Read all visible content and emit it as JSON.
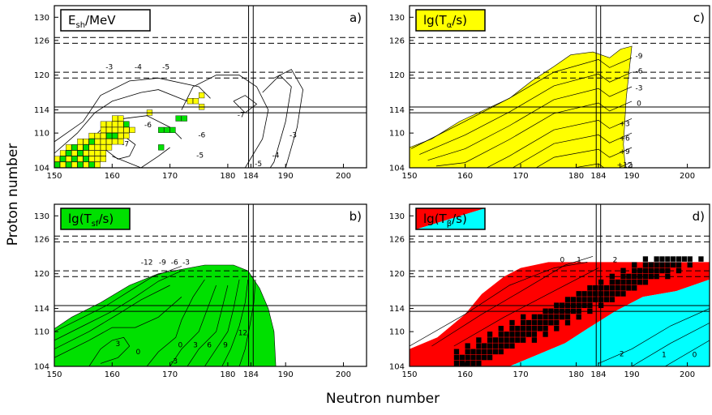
{
  "figure": {
    "xlabel": "Neutron number",
    "ylabel": "Proton number",
    "colors": {
      "yellow": "#ffff00",
      "green": "#00e000",
      "red": "#ff0000",
      "cyan": "#00ffff",
      "black": "#000000"
    }
  },
  "chart_data": [
    {
      "id": "a",
      "type": "contour",
      "panel_label": "a)",
      "title_box": {
        "main": "E",
        "sub": "sh",
        "tail": "/MeV",
        "color": "#ffffff"
      },
      "xlim": [
        150,
        204
      ],
      "ylim": [
        104,
        132
      ],
      "xticks": [
        150,
        160,
        170,
        180,
        184,
        190,
        200
      ],
      "yticks": [
        104,
        110,
        114,
        120,
        126,
        130
      ],
      "contour_labels": [
        {
          "text": "-3",
          "x": 159.5,
          "y": 121.4
        },
        {
          "text": "-4",
          "x": 164.5,
          "y": 121.4
        },
        {
          "text": "-5",
          "x": 169.3,
          "y": 121.4
        },
        {
          "text": "-6",
          "x": 166.2,
          "y": 111.4
        },
        {
          "text": "-7",
          "x": 162.3,
          "y": 108.1
        },
        {
          "text": "-6",
          "x": 175.5,
          "y": 109.7
        },
        {
          "text": "-5",
          "x": 175.2,
          "y": 106.2
        },
        {
          "text": "-4",
          "x": 173.0,
          "y": 102.8
        },
        {
          "text": "-7",
          "x": 182.3,
          "y": 113.2
        },
        {
          "text": "-3",
          "x": 191.3,
          "y": 109.7
        },
        {
          "text": "-4",
          "x": 188.3,
          "y": 106.2
        },
        {
          "text": "-5",
          "x": 185.3,
          "y": 104.7
        }
      ],
      "yellow_nuclei": [
        [
          150,
          104
        ],
        [
          151,
          104
        ],
        [
          152,
          104
        ],
        [
          153,
          104
        ],
        [
          154,
          104
        ],
        [
          155,
          104
        ],
        [
          156,
          104
        ],
        [
          157,
          104
        ],
        [
          150,
          105
        ],
        [
          151,
          105
        ],
        [
          152,
          105
        ],
        [
          153,
          105
        ],
        [
          154,
          105
        ],
        [
          155,
          105
        ],
        [
          156,
          105
        ],
        [
          157,
          105
        ],
        [
          158,
          105
        ],
        [
          151,
          106
        ],
        [
          152,
          106
        ],
        [
          153,
          106
        ],
        [
          154,
          106
        ],
        [
          155,
          106
        ],
        [
          156,
          106
        ],
        [
          157,
          106
        ],
        [
          158,
          106
        ],
        [
          152,
          107
        ],
        [
          153,
          107
        ],
        [
          154,
          107
        ],
        [
          155,
          107
        ],
        [
          156,
          107
        ],
        [
          157,
          107
        ],
        [
          158,
          107
        ],
        [
          159,
          107
        ],
        [
          154,
          108
        ],
        [
          155,
          108
        ],
        [
          156,
          108
        ],
        [
          157,
          108
        ],
        [
          158,
          108
        ],
        [
          159,
          108
        ],
        [
          160,
          108
        ],
        [
          161,
          108
        ],
        [
          156,
          109
        ],
        [
          157,
          109
        ],
        [
          158,
          109
        ],
        [
          159,
          109
        ],
        [
          160,
          109
        ],
        [
          161,
          109
        ],
        [
          162,
          109
        ],
        [
          158,
          110
        ],
        [
          159,
          110
        ],
        [
          160,
          110
        ],
        [
          161,
          110
        ],
        [
          162,
          110
        ],
        [
          163,
          110
        ],
        [
          158,
          111
        ],
        [
          159,
          111
        ],
        [
          160,
          111
        ],
        [
          161,
          111
        ],
        [
          162,
          111
        ],
        [
          160,
          112
        ],
        [
          161,
          112
        ],
        [
          166,
          113
        ],
        [
          175,
          114
        ],
        [
          173,
          115
        ],
        [
          174,
          115
        ],
        [
          175,
          116
        ]
      ],
      "green_nuclei": [
        [
          150,
          104
        ],
        [
          152,
          104
        ],
        [
          154,
          104
        ],
        [
          156,
          104
        ],
        [
          151,
          105
        ],
        [
          153,
          105
        ],
        [
          155,
          105
        ],
        [
          152,
          106
        ],
        [
          154,
          106
        ],
        [
          153,
          107
        ],
        [
          155,
          107
        ],
        [
          156,
          108
        ],
        [
          159,
          109
        ],
        [
          160,
          109
        ],
        [
          162,
          111
        ],
        [
          168,
          110
        ],
        [
          169,
          110
        ],
        [
          170,
          110
        ],
        [
          171,
          112
        ],
        [
          172,
          112
        ],
        [
          168,
          107
        ]
      ]
    },
    {
      "id": "b",
      "type": "contour",
      "panel_label": "b)",
      "title_box": {
        "main": "lg(T",
        "sub": "sf",
        "tail": "/s)",
        "color": "#00e000"
      },
      "xlim": [
        150,
        204
      ],
      "ylim": [
        104,
        132
      ],
      "xticks": [
        150,
        160,
        170,
        180,
        184,
        190,
        200
      ],
      "yticks": [
        104,
        110,
        114,
        120,
        126,
        130
      ],
      "contour_labels": [
        {
          "text": "-12",
          "x": 166.0,
          "y": 122.0
        },
        {
          "text": "-9",
          "x": 168.7,
          "y": 122.0
        },
        {
          "text": "-6",
          "x": 170.8,
          "y": 122.0
        },
        {
          "text": "-3",
          "x": 172.8,
          "y": 122.0
        },
        {
          "text": "3",
          "x": 161.0,
          "y": 107.9
        },
        {
          "text": "0",
          "x": 164.5,
          "y": 106.5
        },
        {
          "text": "-3",
          "x": 170.7,
          "y": 104.9
        },
        {
          "text": "0",
          "x": 171.8,
          "y": 107.7
        },
        {
          "text": "3",
          "x": 174.4,
          "y": 107.7
        },
        {
          "text": "6",
          "x": 176.8,
          "y": 107.7
        },
        {
          "text": "9",
          "x": 179.6,
          "y": 107.7
        },
        {
          "text": "12",
          "x": 182.6,
          "y": 109.8
        }
      ]
    },
    {
      "id": "c",
      "type": "contour",
      "panel_label": "c)",
      "title_box": {
        "main": "lg(T",
        "sub": "α",
        "tail": "/s)",
        "color": "#ffff00"
      },
      "xlim": [
        150,
        204
      ],
      "ylim": [
        104,
        132
      ],
      "xticks": [
        150,
        160,
        170,
        180,
        184,
        190,
        200
      ],
      "yticks": [
        104,
        110,
        114,
        120,
        126,
        130
      ],
      "contour_labels": [
        {
          "text": "-9",
          "x": 191.3,
          "y": 123.3
        },
        {
          "text": "-6",
          "x": 191.3,
          "y": 120.7
        },
        {
          "text": "-3",
          "x": 191.3,
          "y": 117.8
        },
        {
          "text": "0",
          "x": 191.3,
          "y": 115.1
        },
        {
          "text": "+3",
          "x": 188.7,
          "y": 111.6
        },
        {
          "text": "+6",
          "x": 188.7,
          "y": 109.1
        },
        {
          "text": "+9",
          "x": 188.7,
          "y": 106.8
        },
        {
          "text": "+12",
          "x": 188.7,
          "y": 104.5
        }
      ]
    },
    {
      "id": "d",
      "type": "contour",
      "panel_label": "d)",
      "title_box": {
        "main": "lg(T",
        "sub": "β",
        "tail": "/s)",
        "color": "#ff0000",
        "color2": "#00ffff"
      },
      "xlim": [
        150,
        204
      ],
      "ylim": [
        104,
        132
      ],
      "xticks": [
        150,
        160,
        170,
        180,
        184,
        190,
        200
      ],
      "yticks": [
        104,
        110,
        114,
        120,
        126,
        130
      ],
      "contour_labels": [
        {
          "text": "0",
          "x": 177.5,
          "y": 122.4
        },
        {
          "text": "1",
          "x": 180.5,
          "y": 122.4
        },
        {
          "text": "2",
          "x": 187.0,
          "y": 122.4
        },
        {
          "text": "2",
          "x": 188.2,
          "y": 106.2
        },
        {
          "text": "1",
          "x": 195.8,
          "y": 106.0
        },
        {
          "text": "0",
          "x": 201.3,
          "y": 106.0
        }
      ]
    }
  ]
}
